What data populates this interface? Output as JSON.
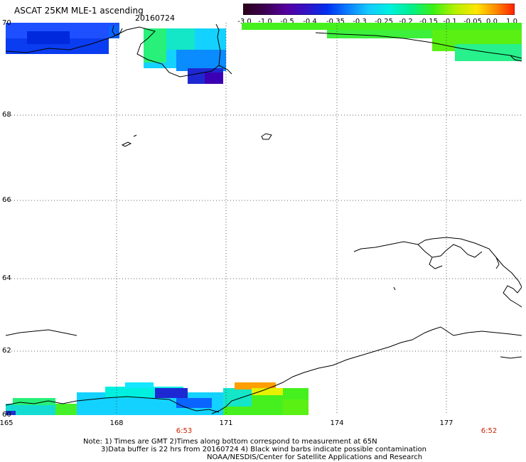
{
  "header": {
    "title": "ASCAT 25KM MLE-1 ascending",
    "date": "20160724"
  },
  "colorbar": {
    "labels": [
      "-3.0",
      "-1.0",
      "-0.5",
      "-0.4",
      "-0.35",
      "-0.3",
      "-0.25",
      "-0.2",
      "-0.15",
      "-0.1",
      "-0.05",
      "0.0",
      "1.0"
    ],
    "colors": [
      "#2a001a",
      "#3c0050",
      "#5500a0",
      "#3014c8",
      "#0030f0",
      "#0a78ff",
      "#14c8ff",
      "#00f0e0",
      "#00f08c",
      "#3cf014",
      "#b4f000",
      "#ffe600",
      "#ff8c00",
      "#ff1e00"
    ]
  },
  "map": {
    "lat_labels": [
      "70",
      "68",
      "66",
      "64",
      "62",
      "60"
    ],
    "lon_labels": [
      "165",
      "168",
      "171",
      "174",
      "177"
    ],
    "time_labels": [
      "6:53",
      "6:52"
    ],
    "coastline_color": "#000000",
    "grid_style": "dotted"
  },
  "footer": {
    "note_line1": "Note: 1) Times are GMT 2)Times along bottom correspond to measurement at 65N",
    "note_line2": "3)Data buffer is 22 hrs from 20160724 4) Black wind barbs indicate possible contamination",
    "credit": "NOAA/NESDIS/Center for Satellite Applications and Research"
  }
}
